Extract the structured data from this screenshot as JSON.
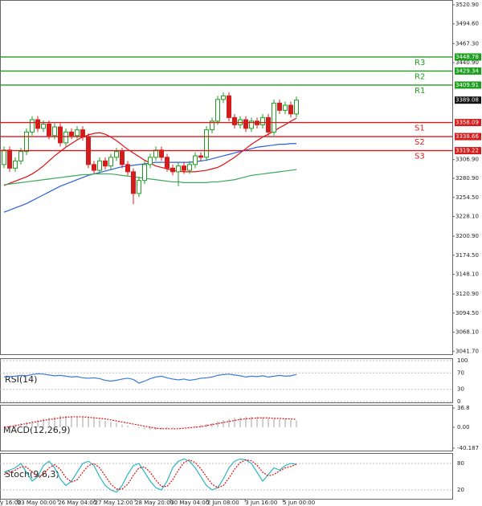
{
  "chart_data": {
    "type": "candlestick",
    "candles": {
      "open": [
        3300,
        3320,
        3295,
        3305,
        3318,
        3345,
        3362,
        3350,
        3356,
        3340,
        3352,
        3330,
        3345,
        3340,
        3348,
        3338,
        3300,
        3292,
        3305,
        3298,
        3310,
        3318,
        3300,
        3290,
        3260,
        3278,
        3300,
        3310,
        3320,
        3310,
        3295,
        3290,
        3298,
        3292,
        3300,
        3312,
        3310,
        3348,
        3360,
        3390,
        3395,
        3365,
        3355,
        3362,
        3350,
        3360,
        3355,
        3365,
        3345,
        3385,
        3375,
        3382,
        3370
      ],
      "high": [
        3325,
        3325,
        3310,
        3323,
        3350,
        3367,
        3367,
        3361,
        3361,
        3357,
        3357,
        3350,
        3350,
        3353,
        3353,
        3343,
        3305,
        3310,
        3310,
        3315,
        3323,
        3323,
        3305,
        3295,
        3283,
        3305,
        3315,
        3325,
        3325,
        3315,
        3300,
        3303,
        3303,
        3305,
        3317,
        3317,
        3353,
        3365,
        3395,
        3400,
        3400,
        3370,
        3367,
        3367,
        3365,
        3365,
        3370,
        3370,
        3390,
        3390,
        3387,
        3387,
        3394
      ],
      "low": [
        3295,
        3290,
        3290,
        3300,
        3313,
        3340,
        3345,
        3345,
        3335,
        3335,
        3325,
        3325,
        3335,
        3335,
        3333,
        3295,
        3287,
        3287,
        3293,
        3293,
        3305,
        3295,
        3285,
        3245,
        3255,
        3273,
        3295,
        3305,
        3305,
        3290,
        3285,
        3270,
        3287,
        3287,
        3295,
        3305,
        3305,
        3343,
        3355,
        3385,
        3360,
        3350,
        3350,
        3345,
        3345,
        3350,
        3350,
        3340,
        3340,
        3370,
        3370,
        3365,
        3365
      ],
      "close": [
        3320,
        3295,
        3305,
        3318,
        3345,
        3362,
        3350,
        3356,
        3340,
        3352,
        3330,
        3345,
        3340,
        3348,
        3338,
        3300,
        3292,
        3305,
        3298,
        3310,
        3318,
        3300,
        3290,
        3260,
        3278,
        3300,
        3310,
        3320,
        3310,
        3295,
        3290,
        3298,
        3292,
        3300,
        3312,
        3310,
        3348,
        3360,
        3390,
        3395,
        3365,
        3355,
        3362,
        3350,
        3360,
        3355,
        3365,
        3345,
        3385,
        3375,
        3382,
        3370,
        3389.08
      ],
      "up_color": "#1e9e1e",
      "down_color": "#d41c1c"
    },
    "moving_averages": [
      {
        "color": "#e01010",
        "values": [
          3271,
          3274,
          3277,
          3280,
          3283,
          3287,
          3292,
          3298,
          3305,
          3312,
          3318,
          3324,
          3329,
          3334,
          3338,
          3341,
          3343,
          3344,
          3342,
          3338,
          3333,
          3327,
          3321,
          3316,
          3311,
          3306,
          3302,
          3298,
          3296,
          3294,
          3292,
          3291,
          3290,
          3290,
          3290,
          3291,
          3292,
          3294,
          3296,
          3300,
          3305,
          3310,
          3316,
          3322,
          3328,
          3333,
          3338,
          3342,
          3346,
          3351,
          3355,
          3360,
          3364
        ]
      },
      {
        "color": "#2b5fd9",
        "values": [
          3234,
          3237,
          3240,
          3243,
          3246,
          3250,
          3254,
          3258,
          3262,
          3266,
          3270,
          3273,
          3276,
          3279,
          3282,
          3285,
          3287,
          3289,
          3291,
          3293,
          3295,
          3297,
          3298,
          3299,
          3300,
          3301,
          3302,
          3303,
          3303,
          3303,
          3303,
          3303,
          3303,
          3303,
          3304,
          3305,
          3306,
          3308,
          3310,
          3312,
          3314,
          3316,
          3318,
          3320,
          3322,
          3324,
          3325,
          3326,
          3327,
          3328,
          3328,
          3329,
          3329
        ]
      },
      {
        "color": "#3aa85a",
        "values": [
          3272,
          3273,
          3274,
          3275,
          3276,
          3277,
          3278,
          3279,
          3280,
          3281,
          3282,
          3283,
          3284,
          3285,
          3286,
          3286,
          3287,
          3287,
          3287,
          3287,
          3286,
          3285,
          3284,
          3283,
          3282,
          3281,
          3280,
          3279,
          3278,
          3277,
          3276,
          3276,
          3275,
          3275,
          3275,
          3275,
          3275,
          3276,
          3276,
          3277,
          3278,
          3279,
          3281,
          3283,
          3285,
          3286,
          3287,
          3288,
          3289,
          3290,
          3291,
          3292,
          3293
        ]
      }
    ],
    "ylim": [
      3036.5,
      3527.6
    ],
    "yticks": [
      {
        "value": 3520.9,
        "label": "3520.90"
      },
      {
        "value": 3494.6,
        "label": "3494.60"
      },
      {
        "value": 3467.3,
        "label": "3467.30"
      },
      {
        "value": 3440.9,
        "label": "3440.90"
      },
      {
        "value": 3306.9,
        "label": "3306.90"
      },
      {
        "value": 3280.9,
        "label": "3280.90"
      },
      {
        "value": 3254.5,
        "label": "3254.50"
      },
      {
        "value": 3228.1,
        "label": "3228.10"
      },
      {
        "value": 3200.9,
        "label": "3200.90"
      },
      {
        "value": 3174.5,
        "label": "3174.50"
      },
      {
        "value": 3148.1,
        "label": "3148.10"
      },
      {
        "value": 3120.9,
        "label": "3120.90"
      },
      {
        "value": 3094.5,
        "label": "3094.50"
      },
      {
        "value": 3068.1,
        "label": "3068.10"
      },
      {
        "value": 3041.7,
        "label": "3041.70"
      }
    ],
    "levels": [
      {
        "name": "R3",
        "value": 3448.78,
        "color": "#1e9e1e"
      },
      {
        "name": "R2",
        "value": 3429.34,
        "color": "#1e9e1e"
      },
      {
        "name": "R1",
        "value": 3409.91,
        "color": "#1e9e1e"
      },
      {
        "name": "S1",
        "value": 3358.09,
        "color": "#d41c1c"
      },
      {
        "name": "S2",
        "value": 3338.66,
        "color": "#d41c1c"
      },
      {
        "name": "S3",
        "value": 3319.22,
        "color": "#d41c1c"
      }
    ],
    "current_price": 3389.08,
    "xticks": [
      {
        "value": -0.7,
        "label": "y 16:00"
      },
      {
        "value": 2.4,
        "label": "23 May 00:00"
      },
      {
        "value": 9.6,
        "label": "26 May 04:00"
      },
      {
        "value": 16.1,
        "label": "27 May 12:00"
      },
      {
        "value": 23.3,
        "label": "28 May 20:00"
      },
      {
        "value": 29.6,
        "label": "30 May 04:00"
      },
      {
        "value": 36.1,
        "label": "2 Jun 08:00"
      },
      {
        "value": 42.9,
        "label": "3 Jun 16:00"
      },
      {
        "value": 49.6,
        "label": "5 Jun 00:00"
      }
    ],
    "rsi": {
      "title": "RSI(14)",
      "ylim": [
        0,
        100
      ],
      "yticks": [
        100,
        70,
        30,
        0
      ],
      "color": "#3a7bd5",
      "values": [
        60,
        61,
        62,
        64,
        63,
        66,
        68,
        67,
        65,
        63,
        64,
        62,
        60,
        61,
        58,
        57,
        58,
        56,
        52,
        50,
        52,
        55,
        57,
        54,
        45,
        50,
        56,
        60,
        62,
        58,
        55,
        53,
        55,
        52,
        54,
        57,
        58,
        60,
        64,
        66,
        67,
        65,
        63,
        60,
        62,
        61,
        63,
        60,
        62,
        64,
        62,
        63,
        66
      ]
    },
    "macd": {
      "title": "MACD(12,26,9)",
      "ylim": [
        -45,
        40
      ],
      "yticks": [
        36.8,
        {
          "value": 0,
          "label": "0.00"
        },
        -40.187
      ],
      "histogram_color": "#a0a0a0",
      "signal_color": "#e01010",
      "histogram": [
        1,
        3,
        5,
        8,
        10,
        12,
        14,
        16,
        18,
        20,
        22,
        22,
        21,
        20,
        19,
        18,
        16,
        14,
        12,
        10,
        8,
        5,
        3,
        1,
        -2,
        -4,
        -5,
        -5,
        -4,
        -3,
        -2,
        -1,
        0,
        1,
        2,
        4,
        6,
        8,
        11,
        14,
        16,
        18,
        19,
        20,
        20,
        19,
        18,
        17,
        16,
        15,
        15,
        14,
        13
      ],
      "signal": [
        0,
        1,
        3,
        5,
        7,
        9,
        11,
        13,
        15,
        16,
        18,
        19,
        20,
        20,
        20,
        19,
        18,
        17,
        16,
        14,
        12,
        10,
        8,
        6,
        4,
        2,
        0,
        -2,
        -3,
        -3,
        -3,
        -3,
        -2,
        -1,
        0,
        1,
        3,
        5,
        7,
        9,
        11,
        13,
        15,
        16,
        17,
        18,
        18,
        18,
        17,
        17,
        16,
        16,
        15
      ]
    },
    "stoch": {
      "title": "Stoch(9,6,3)",
      "ylim": [
        0,
        100
      ],
      "yticks": [
        80,
        20
      ],
      "main_color": "#2bb5c4",
      "signal_color": "#e01010",
      "main": [
        60,
        65,
        70,
        80,
        60,
        40,
        50,
        75,
        85,
        70,
        45,
        30,
        40,
        60,
        80,
        85,
        75,
        50,
        30,
        20,
        15,
        30,
        55,
        75,
        80,
        60,
        40,
        25,
        20,
        40,
        70,
        85,
        90,
        85,
        70,
        50,
        30,
        20,
        25,
        45,
        70,
        85,
        90,
        88,
        80,
        60,
        40,
        55,
        70,
        65,
        75,
        80,
        78
      ],
      "signal": [
        55,
        60,
        65,
        72,
        72,
        60,
        50,
        55,
        70,
        77,
        67,
        48,
        38,
        43,
        60,
        75,
        80,
        70,
        52,
        33,
        22,
        22,
        33,
        53,
        70,
        72,
        60,
        42,
        28,
        28,
        43,
        65,
        82,
        88,
        82,
        68,
        50,
        33,
        25,
        30,
        47,
        67,
        82,
        88,
        86,
        76,
        60,
        52,
        55,
        63,
        70,
        73,
        78
      ]
    }
  }
}
